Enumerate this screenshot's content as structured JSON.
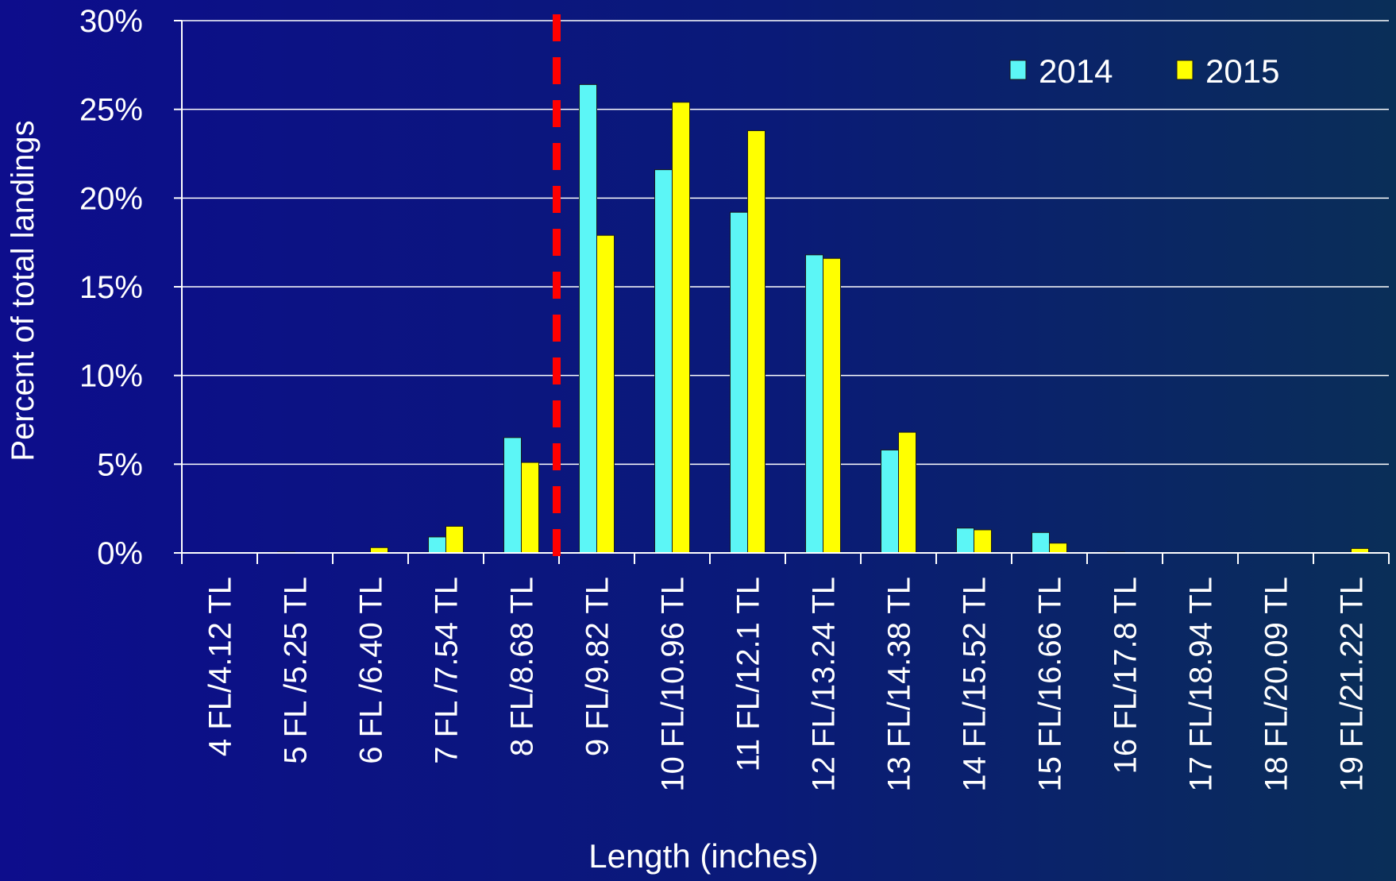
{
  "chart_data": {
    "type": "bar",
    "title": "",
    "xlabel": "Length (inches)",
    "ylabel": "Percent of total landings",
    "ylim": [
      0,
      30
    ],
    "yticks": [
      "0%",
      "5%",
      "10%",
      "15%",
      "20%",
      "25%",
      "30%"
    ],
    "grid": true,
    "legend_position": "top-right",
    "categories": [
      "4 FL/4.12 TL",
      "5 FL /5.25 TL",
      "6 FL /6.40 TL",
      "7 FL /7.54 TL",
      "8 FL/8.68 TL",
      "9 FL/9.82 TL",
      "10 FL/10.96 TL",
      "11 FL/12.1 TL",
      "12 FL/13.24 TL",
      "13 FL/14.38 TL",
      "14 FL/15.52 TL",
      "15 FL/16.66 TL",
      "16 FL/17.8 TL",
      "17 FL/18.94 TL",
      "18 FL/20.09 TL",
      "19 FL/21.22 TL"
    ],
    "series": [
      {
        "name": "2014",
        "color": "#5cf6f6",
        "values": [
          0,
          0.05,
          0,
          0.9,
          6.5,
          26.4,
          21.6,
          19.2,
          16.8,
          5.8,
          1.4,
          1.15,
          0.05,
          0,
          0,
          0
        ]
      },
      {
        "name": "2015",
        "color": "#ffff00",
        "values": [
          0,
          0,
          0.3,
          1.5,
          5.1,
          17.9,
          25.4,
          23.8,
          16.6,
          6.8,
          1.3,
          0.55,
          0,
          0,
          0,
          0.25
        ]
      }
    ],
    "reference_line": {
      "style": "dashed",
      "color": "#ff0000",
      "position": "between 8 FL/8.68 TL and 9 FL/9.82 TL"
    }
  }
}
